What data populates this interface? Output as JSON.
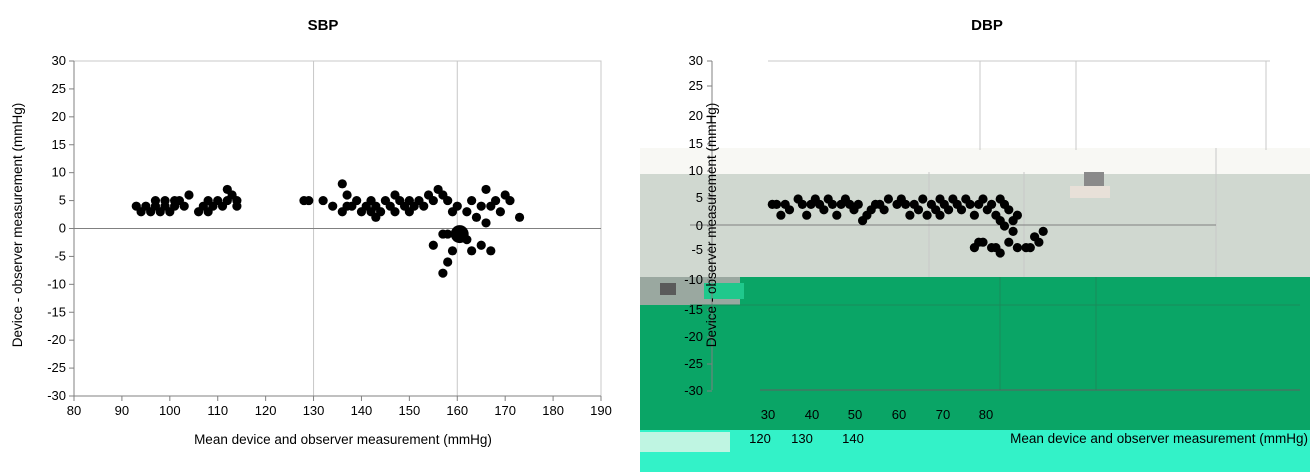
{
  "chart_data": [
    {
      "type": "scatter",
      "title": "SBP",
      "xlabel": "Mean device and observer measurement (mmHg)",
      "ylabel": "Device - observer measurement (mmHg)",
      "xlim": [
        80,
        190
      ],
      "ylim": [
        -30,
        30
      ],
      "x_ticks": [
        80,
        90,
        100,
        110,
        120,
        130,
        140,
        150,
        160,
        170,
        180,
        190
      ],
      "y_ticks": [
        30,
        25,
        20,
        15,
        10,
        5,
        0,
        -5,
        -10,
        -15,
        -20,
        -25,
        -30
      ],
      "vertical_gridlines": [
        130,
        160,
        190
      ],
      "reference_line": 0,
      "points": [
        [
          93,
          4
        ],
        [
          94,
          3
        ],
        [
          95,
          4
        ],
        [
          96,
          3
        ],
        [
          97,
          5
        ],
        [
          97,
          4
        ],
        [
          98,
          3
        ],
        [
          99,
          5
        ],
        [
          99,
          4
        ],
        [
          100,
          3
        ],
        [
          101,
          5
        ],
        [
          101,
          4
        ],
        [
          102,
          5
        ],
        [
          103,
          4
        ],
        [
          104,
          6
        ],
        [
          106,
          3
        ],
        [
          107,
          4
        ],
        [
          108,
          5
        ],
        [
          108,
          3
        ],
        [
          109,
          4
        ],
        [
          110,
          5
        ],
        [
          111,
          4
        ],
        [
          112,
          7
        ],
        [
          112,
          5
        ],
        [
          113,
          6
        ],
        [
          114,
          5
        ],
        [
          114,
          4
        ],
        [
          128,
          5
        ],
        [
          129,
          5
        ],
        [
          132,
          5
        ],
        [
          134,
          4
        ],
        [
          136,
          8
        ],
        [
          136,
          3
        ],
        [
          137,
          6
        ],
        [
          137,
          4
        ],
        [
          138,
          4
        ],
        [
          139,
          5
        ],
        [
          140,
          3
        ],
        [
          141,
          4
        ],
        [
          142,
          5
        ],
        [
          142,
          3
        ],
        [
          143,
          4
        ],
        [
          143,
          2
        ],
        [
          144,
          3
        ],
        [
          145,
          5
        ],
        [
          146,
          4
        ],
        [
          147,
          6
        ],
        [
          147,
          3
        ],
        [
          148,
          5
        ],
        [
          149,
          4
        ],
        [
          150,
          5
        ],
        [
          150,
          3
        ],
        [
          151,
          4
        ],
        [
          152,
          5
        ],
        [
          153,
          4
        ],
        [
          154,
          6
        ],
        [
          155,
          5
        ],
        [
          155,
          -3
        ],
        [
          156,
          7
        ],
        [
          157,
          6
        ],
        [
          157,
          -1
        ],
        [
          157,
          -8
        ],
        [
          158,
          5
        ],
        [
          158,
          -6
        ],
        [
          158,
          -1
        ],
        [
          159,
          -4
        ],
        [
          159,
          3
        ],
        [
          160,
          4
        ],
        [
          160,
          -1
        ],
        [
          161,
          -1
        ],
        [
          162,
          -2
        ],
        [
          162,
          3
        ],
        [
          163,
          5
        ],
        [
          163,
          -4
        ],
        [
          164,
          2
        ],
        [
          165,
          -3
        ],
        [
          165,
          4
        ],
        [
          166,
          7
        ],
        [
          166,
          1
        ],
        [
          167,
          4
        ],
        [
          167,
          -4
        ],
        [
          168,
          5
        ],
        [
          169,
          3
        ],
        [
          170,
          6
        ],
        [
          171,
          5
        ],
        [
          173,
          2
        ]
      ],
      "large_points": [
        [
          160.5,
          -1
        ]
      ]
    },
    {
      "type": "scatter",
      "title": "DBP",
      "xlabel": "Mean device and observer measurement (mmHg)",
      "ylabel": "Device - observer measurement (mmHg)",
      "xlim": [
        30,
        100
      ],
      "ylim": [
        -30,
        30
      ],
      "x_ticks": [
        30,
        40,
        50,
        60,
        70,
        80
      ],
      "y_ticks": [
        30,
        25,
        20,
        15,
        10,
        5,
        0,
        -5,
        -10,
        -15,
        -20,
        -25,
        -30
      ],
      "extra_x_tick_labels": [
        "120",
        "130",
        "140"
      ],
      "reference_line": 0,
      "points": [
        [
          31,
          4
        ],
        [
          32,
          4
        ],
        [
          33,
          2
        ],
        [
          34,
          4
        ],
        [
          35,
          3
        ],
        [
          37,
          5
        ],
        [
          38,
          4
        ],
        [
          39,
          2
        ],
        [
          40,
          4
        ],
        [
          41,
          5
        ],
        [
          42,
          4
        ],
        [
          43,
          3
        ],
        [
          44,
          5
        ],
        [
          45,
          4
        ],
        [
          46,
          2
        ],
        [
          47,
          4
        ],
        [
          48,
          5
        ],
        [
          49,
          4
        ],
        [
          50,
          3
        ],
        [
          51,
          4
        ],
        [
          52,
          1
        ],
        [
          53,
          2
        ],
        [
          54,
          3
        ],
        [
          55,
          4
        ],
        [
          56,
          4
        ],
        [
          57,
          3
        ],
        [
          58,
          5
        ],
        [
          60,
          4
        ],
        [
          61,
          5
        ],
        [
          62,
          4
        ],
        [
          63,
          2
        ],
        [
          64,
          4
        ],
        [
          65,
          3
        ],
        [
          66,
          5
        ],
        [
          67,
          2
        ],
        [
          68,
          4
        ],
        [
          69,
          3
        ],
        [
          70,
          5
        ],
        [
          70,
          2
        ],
        [
          71,
          4
        ],
        [
          72,
          3
        ],
        [
          73,
          5
        ],
        [
          74,
          4
        ],
        [
          75,
          3
        ],
        [
          76,
          5
        ],
        [
          77,
          4
        ],
        [
          78,
          2
        ],
        [
          79,
          4
        ],
        [
          80,
          5
        ],
        [
          81,
          3
        ],
        [
          82,
          4
        ],
        [
          83,
          2
        ],
        [
          84,
          5
        ],
        [
          85,
          4
        ],
        [
          86,
          3
        ],
        [
          87,
          1
        ],
        [
          88,
          2
        ],
        [
          78,
          -4
        ],
        [
          79,
          -3
        ],
        [
          80,
          -3
        ],
        [
          82,
          -4
        ],
        [
          83,
          -4
        ],
        [
          84,
          -5
        ],
        [
          86,
          -3
        ],
        [
          87,
          -1
        ],
        [
          88,
          -4
        ],
        [
          90,
          -4
        ],
        [
          91,
          -4
        ],
        [
          92,
          -2
        ],
        [
          93,
          -3
        ],
        [
          94,
          -1
        ],
        [
          85,
          0
        ],
        [
          84,
          1
        ]
      ]
    }
  ]
}
